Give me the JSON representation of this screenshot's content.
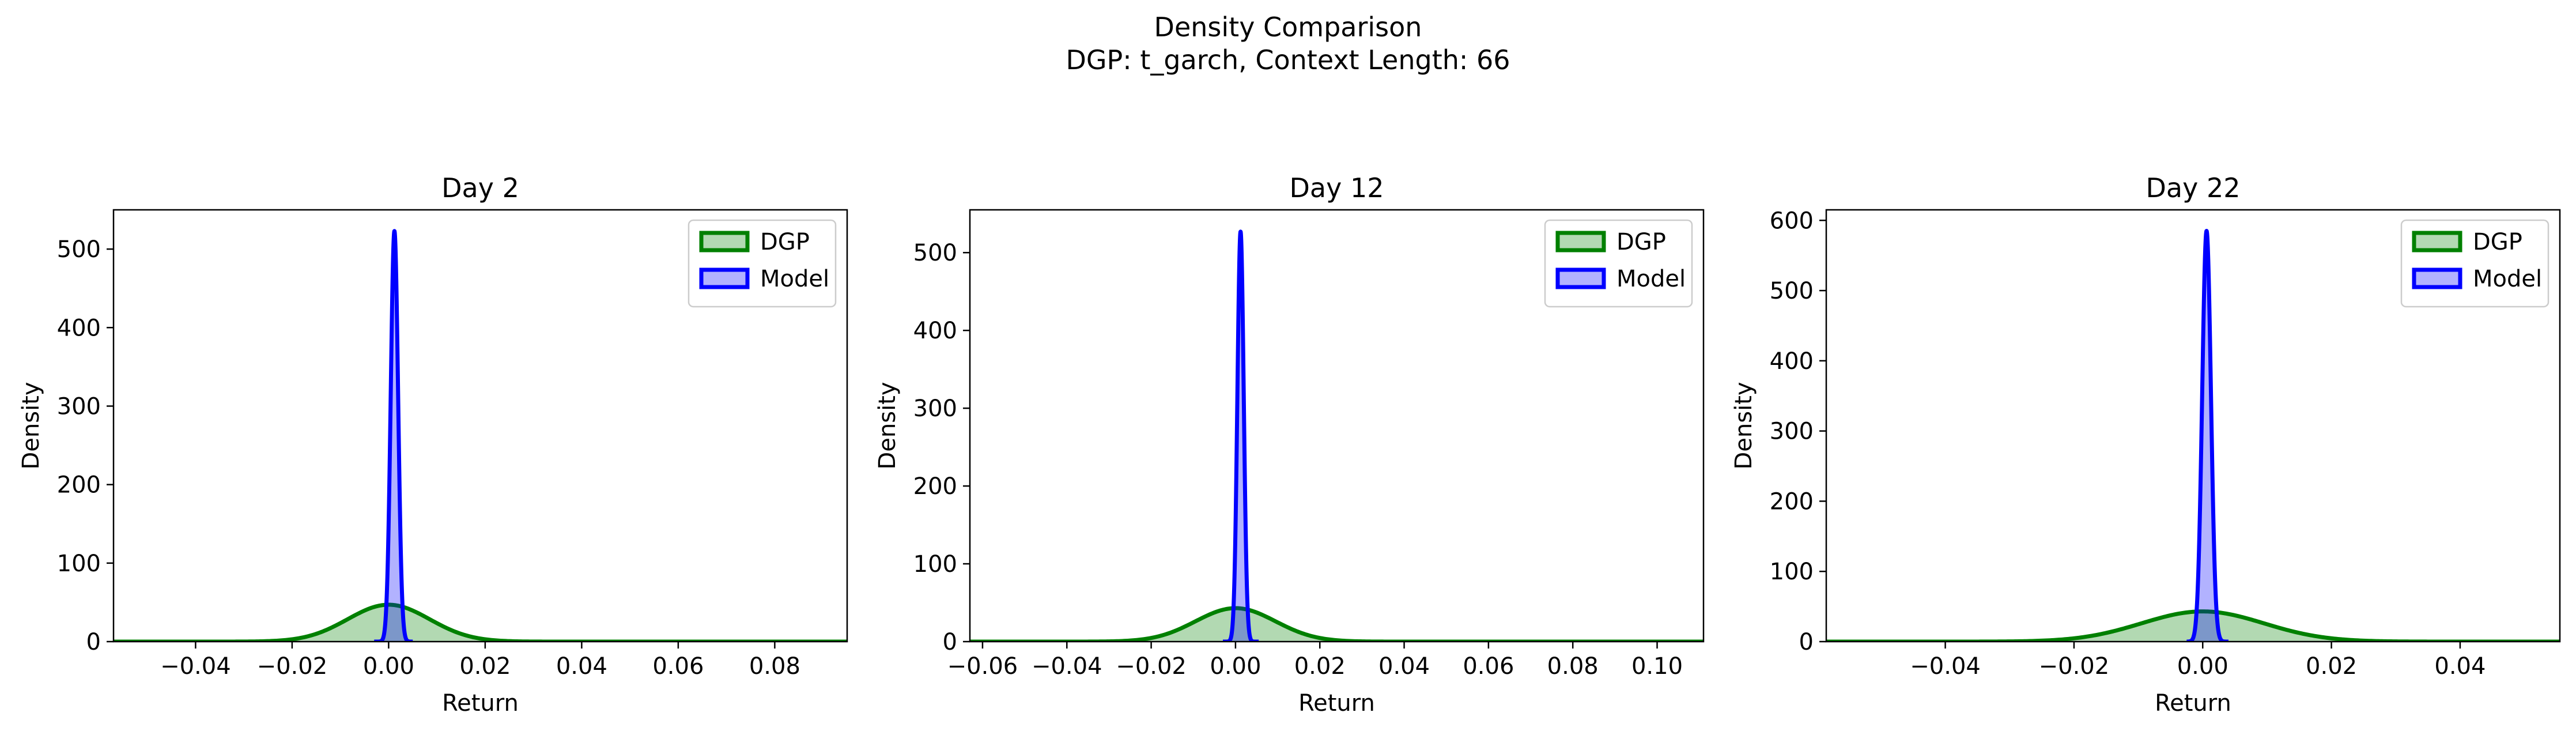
{
  "figure": {
    "title": "Density Comparison",
    "subtitle": "DGP: t_garch, Context Length: 66"
  },
  "colors": {
    "dgp_line": "#008000",
    "dgp_fill": "rgba(0,128,0,0.3)",
    "model_line": "#0000ff",
    "model_fill": "rgba(0,0,255,0.3)"
  },
  "chart_data": [
    {
      "type": "area",
      "title": "Day 2",
      "xlabel": "Return",
      "ylabel": "Density",
      "xlim": [
        -0.057,
        0.095
      ],
      "ylim": [
        0,
        550
      ],
      "xticks": [
        -0.04,
        -0.02,
        0.0,
        0.02,
        0.04,
        0.06,
        0.08
      ],
      "xticklabels": [
        "−0.04",
        "−0.02",
        "0.00",
        "0.02",
        "0.04",
        "0.06",
        "0.08"
      ],
      "yticks": [
        0,
        100,
        200,
        300,
        400,
        500
      ],
      "yticklabels": [
        "0",
        "100",
        "200",
        "300",
        "400",
        "500"
      ],
      "legend": "top-right",
      "series": [
        {
          "name": "DGP",
          "kind": "density",
          "center": 0.0,
          "scale": 0.0085,
          "peak": 47,
          "xrange": [
            -0.057,
            0.095
          ]
        },
        {
          "name": "Model",
          "kind": "density",
          "center": 0.0012,
          "scale": 0.00076,
          "peak": 523,
          "xrange": [
            -0.003,
            0.005
          ]
        }
      ]
    },
    {
      "type": "area",
      "title": "Day 12",
      "xlabel": "Return",
      "ylabel": "Density",
      "xlim": [
        -0.063,
        0.111
      ],
      "ylim": [
        0,
        555
      ],
      "xticks": [
        -0.06,
        -0.04,
        -0.02,
        0.0,
        0.02,
        0.04,
        0.06,
        0.08,
        0.1
      ],
      "xticklabels": [
        "−0.06",
        "−0.04",
        "−0.02",
        "0.00",
        "0.02",
        "0.04",
        "0.06",
        "0.08",
        "0.10"
      ],
      "yticks": [
        0,
        100,
        200,
        300,
        400,
        500
      ],
      "yticklabels": [
        "0",
        "100",
        "200",
        "300",
        "400",
        "500"
      ],
      "legend": "top-right",
      "series": [
        {
          "name": "DGP",
          "kind": "density",
          "center": 0.0,
          "scale": 0.0095,
          "peak": 43,
          "xrange": [
            -0.063,
            0.111
          ]
        },
        {
          "name": "Model",
          "kind": "density",
          "center": 0.0012,
          "scale": 0.00075,
          "peak": 527,
          "xrange": [
            -0.003,
            0.0055
          ]
        }
      ]
    },
    {
      "type": "area",
      "title": "Day 22",
      "xlabel": "Return",
      "ylabel": "Density",
      "xlim": [
        -0.0585,
        0.0555
      ],
      "ylim": [
        0,
        615
      ],
      "xticks": [
        -0.04,
        -0.02,
        0.0,
        0.02,
        0.04
      ],
      "xticklabels": [
        "−0.04",
        "−0.02",
        "0.00",
        "0.02",
        "0.04"
      ],
      "yticks": [
        0,
        100,
        200,
        300,
        400,
        500,
        600
      ],
      "yticklabels": [
        "0",
        "100",
        "200",
        "300",
        "400",
        "500",
        "600"
      ],
      "legend": "top-right",
      "series": [
        {
          "name": "DGP",
          "kind": "density",
          "center": 0.0,
          "scale": 0.0095,
          "peak": 43,
          "xrange": [
            -0.0585,
            0.0555
          ]
        },
        {
          "name": "Model",
          "kind": "density",
          "center": 0.0006,
          "scale": 0.00068,
          "peak": 585,
          "xrange": [
            -0.0025,
            0.004
          ]
        }
      ]
    }
  ]
}
